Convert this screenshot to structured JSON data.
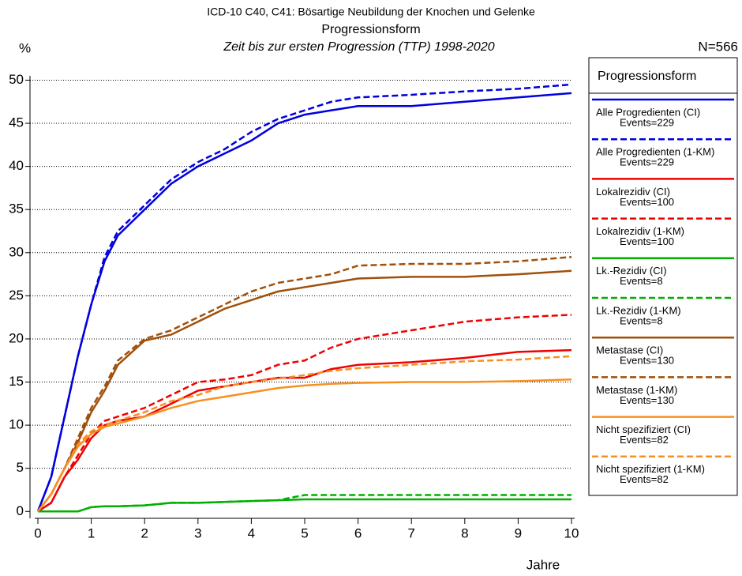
{
  "chart_data": {
    "type": "line",
    "title": "ICD-10 C40, C41: Bösartige Neubildung der Knochen und Gelenke",
    "subtitle": "Progressionsform",
    "subtitle2": "Zeit bis zur ersten Progression (TTP) 1998-2020",
    "y_label": "%",
    "x_label": "Jahre",
    "n_label": "N=566",
    "legend_title": "Progressionsform",
    "x": [
      0,
      0.25,
      0.5,
      0.75,
      1,
      1.25,
      1.5,
      2,
      2.5,
      3,
      3.5,
      4,
      4.5,
      5,
      5.5,
      6,
      7,
      8,
      9,
      10
    ],
    "xlim": [
      0,
      10
    ],
    "xticks": [
      0,
      1,
      2,
      3,
      4,
      5,
      6,
      7,
      8,
      9,
      10
    ],
    "ylim": [
      -0.8,
      50.5
    ],
    "yticks": [
      0,
      5,
      10,
      15,
      20,
      25,
      30,
      35,
      40,
      45,
      50
    ],
    "grid": true,
    "series": [
      {
        "name": "Alle Progredienten (CI)",
        "events": "Events=229",
        "color": "#0000e0",
        "dash": false,
        "values": [
          0,
          4,
          11,
          18,
          24,
          29,
          32,
          35,
          38,
          40,
          41.5,
          43,
          45,
          46,
          46.5,
          47,
          47,
          47.5,
          48,
          48.5
        ]
      },
      {
        "name": "Alle Progredienten (1-KM)",
        "events": "Events=229",
        "color": "#0000e0",
        "dash": true,
        "values": [
          0,
          4,
          11,
          18,
          24,
          29.5,
          32.5,
          35.5,
          38.5,
          40.5,
          42,
          44,
          45.5,
          46.5,
          47.5,
          48,
          48.3,
          48.7,
          49,
          49.5
        ]
      },
      {
        "name": "Lokalrezidiv (CI)",
        "events": "Events=100",
        "color": "#f00000",
        "dash": false,
        "values": [
          0,
          1,
          4,
          6,
          8.5,
          10,
          10.5,
          11,
          12.5,
          14,
          14.5,
          15,
          15.5,
          15.5,
          16.5,
          17,
          17.3,
          17.8,
          18.5,
          18.7
        ]
      },
      {
        "name": "Lokalrezidiv (1-KM)",
        "events": "Events=100",
        "color": "#f00000",
        "dash": true,
        "values": [
          0,
          1,
          4,
          6.5,
          9,
          10.5,
          11,
          12,
          13.5,
          15,
          15.3,
          15.8,
          17,
          17.5,
          19,
          20,
          21,
          22,
          22.5,
          22.8
        ]
      },
      {
        "name": "Lk.-Rezidiv (CI)",
        "events": "Events=8",
        "color": "#00b000",
        "dash": false,
        "values": [
          0,
          0,
          0,
          0,
          0.5,
          0.6,
          0.6,
          0.7,
          1,
          1,
          1.1,
          1.2,
          1.3,
          1.4,
          1.4,
          1.4,
          1.4,
          1.4,
          1.4,
          1.4
        ]
      },
      {
        "name": "Lk.-Rezidiv (1-KM)",
        "events": "Events=8",
        "color": "#00b000",
        "dash": true,
        "values": [
          0,
          0,
          0,
          0,
          0.5,
          0.6,
          0.6,
          0.7,
          1,
          1,
          1.1,
          1.2,
          1.3,
          1.9,
          1.9,
          1.9,
          1.9,
          1.9,
          1.9,
          1.9
        ]
      },
      {
        "name": "Metastase (CI)",
        "events": "Events=130",
        "color": "#a0500a",
        "dash": false,
        "values": [
          0,
          2,
          5,
          8,
          11.5,
          14,
          17,
          19.8,
          20.5,
          22,
          23.5,
          24.5,
          25.5,
          26,
          26.5,
          27,
          27.2,
          27.2,
          27.5,
          27.9
        ]
      },
      {
        "name": "Metastase (1-KM)",
        "events": "Events=130",
        "color": "#a0500a",
        "dash": true,
        "values": [
          0,
          2,
          5,
          8.5,
          12,
          14.5,
          17.5,
          20,
          21,
          22.5,
          24,
          25.5,
          26.5,
          27,
          27.5,
          28.5,
          28.7,
          28.7,
          29,
          29.5
        ]
      },
      {
        "name": "Nicht spezifiziert (CI)",
        "events": "Events=82",
        "color": "#f89020",
        "dash": false,
        "values": [
          0,
          2,
          5,
          7.5,
          9,
          9.8,
          10.2,
          11,
          12,
          12.8,
          13.3,
          13.8,
          14.3,
          14.6,
          14.8,
          14.9,
          15,
          15,
          15.1,
          15.3
        ]
      },
      {
        "name": "Nicht spezifiziert (1-KM)",
        "events": "Events=82",
        "color": "#f89020",
        "dash": true,
        "values": [
          0,
          2,
          5,
          7.8,
          9.3,
          10,
          10.5,
          11.5,
          12.8,
          13.5,
          14.5,
          15,
          15.4,
          15.8,
          16.3,
          16.6,
          17,
          17.4,
          17.6,
          18
        ]
      }
    ]
  }
}
